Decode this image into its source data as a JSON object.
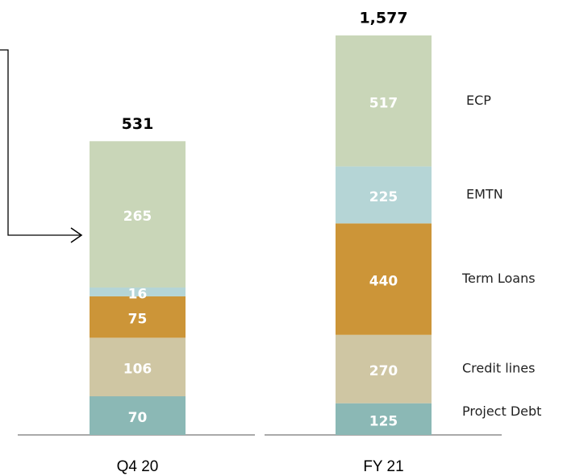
{
  "chart_data": {
    "type": "stacked-bar",
    "categories": [
      "Q4 20",
      "FY 21"
    ],
    "series": [
      {
        "name": "Project Debt",
        "color": "#8bb8b5",
        "values": [
          70,
          125
        ]
      },
      {
        "name": "Credit lines",
        "color": "#cfc6a3",
        "values": [
          106,
          270
        ]
      },
      {
        "name": "Term Loans",
        "color": "#cc9538",
        "values": [
          75,
          440
        ]
      },
      {
        "name": "EMTN",
        "color": "#b5d5d6",
        "values": [
          16,
          225
        ]
      },
      {
        "name": "ECP",
        "color": "#c9d6b8",
        "values": [
          265,
          517
        ]
      }
    ],
    "totals": {
      "values": [
        531,
        1577
      ],
      "value_labels": [
        "531",
        "1,577"
      ]
    }
  }
}
